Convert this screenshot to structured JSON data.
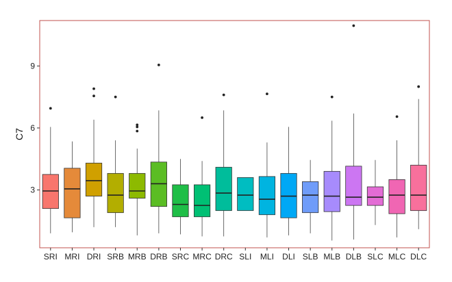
{
  "chart_data": {
    "type": "boxplot",
    "title": "",
    "xlabel": "",
    "ylabel": "C7",
    "ylim": [
      0.2,
      11.2
    ],
    "yticks": [
      3,
      6,
      9
    ],
    "grid": false,
    "legend": "none",
    "frame_color": "#c0504d",
    "categories": [
      "SRI",
      "MRI",
      "DRI",
      "SRB",
      "MRB",
      "DRB",
      "SRC",
      "MRC",
      "DRC",
      "SLI",
      "MLI",
      "DLI",
      "SLB",
      "MLB",
      "DLB",
      "SLC",
      "MLC",
      "DLC"
    ],
    "colors": [
      "#f8766d",
      "#e58a3a",
      "#d0a000",
      "#b3ae00",
      "#8dba00",
      "#5bbd24",
      "#1fbe47",
      "#00c074",
      "#00bd9b",
      "#00bdc1",
      "#00b4e0",
      "#00a8f5",
      "#6f9cf9",
      "#a78bfc",
      "#cc76f2",
      "#e36cd5",
      "#f066b3",
      "#f8709c"
    ],
    "boxes": [
      {
        "min": 0.9,
        "q1": 2.1,
        "median": 2.95,
        "q3": 3.75,
        "max": 6.05,
        "outliers": [
          6.95
        ]
      },
      {
        "min": 0.95,
        "q1": 1.65,
        "median": 3.05,
        "q3": 4.05,
        "max": 5.35,
        "outliers": []
      },
      {
        "min": 1.2,
        "q1": 2.7,
        "median": 3.45,
        "q3": 4.3,
        "max": 6.4,
        "outliers": [
          7.55,
          7.9
        ]
      },
      {
        "min": 1.2,
        "q1": 1.9,
        "median": 2.75,
        "q3": 3.8,
        "max": 5.4,
        "outliers": [
          7.5
        ]
      },
      {
        "min": 0.8,
        "q1": 2.6,
        "median": 2.95,
        "q3": 3.8,
        "max": 5.0,
        "outliers": [
          5.85,
          6.05,
          6.15
        ]
      },
      {
        "min": 0.9,
        "q1": 2.2,
        "median": 3.3,
        "q3": 4.35,
        "max": 6.85,
        "outliers": [
          9.05
        ]
      },
      {
        "min": 0.85,
        "q1": 1.7,
        "median": 2.3,
        "q3": 3.25,
        "max": 4.5,
        "outliers": []
      },
      {
        "min": 0.75,
        "q1": 1.7,
        "median": 2.25,
        "q3": 3.25,
        "max": 4.4,
        "outliers": [
          6.5
        ]
      },
      {
        "min": 0.75,
        "q1": 2.0,
        "median": 2.85,
        "q3": 4.1,
        "max": 6.85,
        "outliers": [
          7.6
        ]
      },
      {
        "min": 2.0,
        "q1": 2.0,
        "median": 2.75,
        "q3": 3.6,
        "max": 3.6,
        "outliers": []
      },
      {
        "min": 0.7,
        "q1": 1.8,
        "median": 2.55,
        "q3": 3.65,
        "max": 5.3,
        "outliers": [
          7.65
        ]
      },
      {
        "min": 0.8,
        "q1": 1.65,
        "median": 2.7,
        "q3": 3.8,
        "max": 6.05,
        "outliers": []
      },
      {
        "min": 0.9,
        "q1": 1.9,
        "median": 2.75,
        "q3": 3.4,
        "max": 4.45,
        "outliers": []
      },
      {
        "min": 0.55,
        "q1": 1.95,
        "median": 2.7,
        "q3": 3.9,
        "max": 6.35,
        "outliers": [
          7.5
        ]
      },
      {
        "min": 0.6,
        "q1": 2.25,
        "median": 2.65,
        "q3": 4.15,
        "max": 6.7,
        "outliers": [
          10.95
        ]
      },
      {
        "min": 1.3,
        "q1": 2.25,
        "median": 2.65,
        "q3": 3.15,
        "max": 4.45,
        "outliers": []
      },
      {
        "min": 0.7,
        "q1": 1.85,
        "median": 2.75,
        "q3": 3.5,
        "max": 5.4,
        "outliers": [
          6.55
        ]
      },
      {
        "min": 1.1,
        "q1": 2.0,
        "median": 2.75,
        "q3": 4.2,
        "max": 7.4,
        "outliers": [
          8.0
        ]
      }
    ]
  }
}
